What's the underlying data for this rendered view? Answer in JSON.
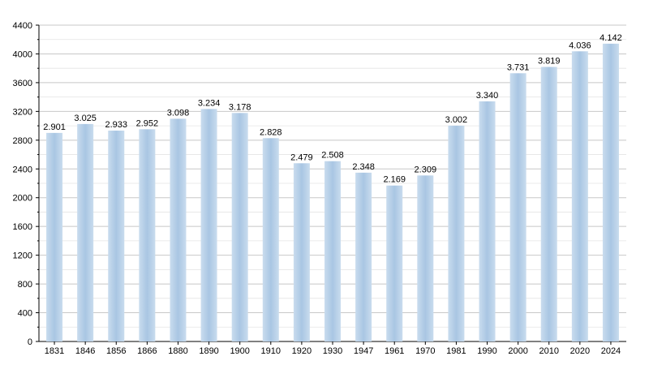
{
  "chart_data": {
    "type": "bar",
    "title": "",
    "xlabel": "",
    "ylabel": "",
    "categories": [
      "1831",
      "1846",
      "1856",
      "1866",
      "1880",
      "1890",
      "1900",
      "1910",
      "1920",
      "1930",
      "1947",
      "1961",
      "1970",
      "1981",
      "1990",
      "2000",
      "2010",
      "2020",
      "2024"
    ],
    "values": [
      2901,
      3025,
      2933,
      2952,
      3098,
      3234,
      3178,
      2828,
      2479,
      2508,
      2348,
      2169,
      2309,
      3002,
      3340,
      3731,
      3819,
      4036,
      4142
    ],
    "value_labels": [
      "2.901",
      "3.025",
      "2.933",
      "2.952",
      "3.098",
      "3.234",
      "3.178",
      "2.828",
      "2.479",
      "2.508",
      "2.348",
      "2.169",
      "2.309",
      "3.002",
      "3.340",
      "3.731",
      "3.819",
      "4.036",
      "4.142"
    ],
    "ylim": [
      0,
      4400
    ],
    "y_ticks": [
      0,
      400,
      800,
      1200,
      1600,
      2000,
      2400,
      2800,
      3200,
      3600,
      4000,
      4400
    ],
    "y_tick_labels": [
      "0",
      "400",
      "800",
      "1200",
      "1600",
      "2000",
      "2400",
      "2800",
      "3200",
      "3600",
      "4000",
      "4400"
    ],
    "grid": true,
    "bar_color": "#b0cce6",
    "grid_color": "#c8c8c8"
  }
}
